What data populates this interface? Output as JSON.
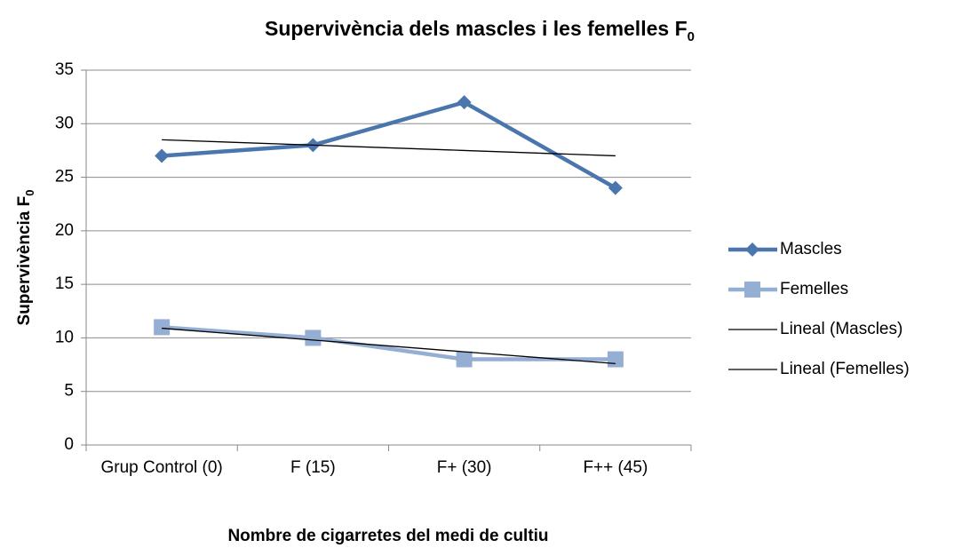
{
  "chart_data": {
    "type": "line",
    "title": "Supervivència dels mascles i  les femelles F",
    "title_subscript": "0",
    "x_label": "Nombre de cigarretes del medi de cultiu",
    "y_label": "Supervivència F",
    "y_label_subscript": "0",
    "categories": [
      "Grup Control (0)",
      "F (15)",
      "F+ (30)",
      "F++ (45)"
    ],
    "series": [
      {
        "name": "Mascles",
        "color": "#4a76ad",
        "marker": "diamond",
        "values": [
          27,
          28,
          32,
          24
        ]
      },
      {
        "name": "Femelles",
        "color": "#95aed3",
        "marker": "square",
        "values": [
          11,
          10,
          8,
          8
        ]
      },
      {
        "name": "Lineal (Mascles)",
        "color": "#000000",
        "marker": "none",
        "values": [
          28.5,
          28,
          27.5,
          27
        ]
      },
      {
        "name": "Lineal (Femelles)",
        "color": "#000000",
        "marker": "none",
        "values": [
          10.9,
          9.8,
          8.7,
          7.6
        ]
      }
    ],
    "ylim": [
      0,
      35
    ],
    "yticks": [
      0,
      5,
      10,
      15,
      20,
      25,
      30,
      35
    ],
    "grid": true,
    "legend": "right"
  }
}
